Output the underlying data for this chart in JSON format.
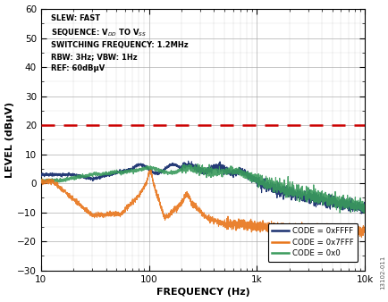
{
  "title": "",
  "xlabel": "FREQUENCY (Hz)",
  "ylabel": "LEVEL (dBμV)",
  "xlim": [
    10,
    10000
  ],
  "ylim": [
    -30,
    60
  ],
  "yticks": [
    -30,
    -20,
    -10,
    0,
    10,
    20,
    30,
    40,
    50,
    60
  ],
  "red_dashed_y": 20,
  "annotation_lines": [
    "SLEW: FAST",
    "SEQUENCE: V$_{DD}$ TO V$_{SS}$",
    "SWITCHING FREQUENCY: 1.2MHz",
    "RBW: 3Hz; VBW: 1Hz",
    "REF: 60dBμV"
  ],
  "legend_entries": [
    "CODE = 0xFFFF",
    "CODE = 0x7FFF",
    "CODE = 0x0"
  ],
  "colors": {
    "blue": "#1a3070",
    "orange": "#e8751a",
    "green": "#3a9a5c"
  },
  "watermark": "13102-011",
  "background_color": "#ffffff",
  "grid_color": "#aaaaaa",
  "font_color": "#000000"
}
